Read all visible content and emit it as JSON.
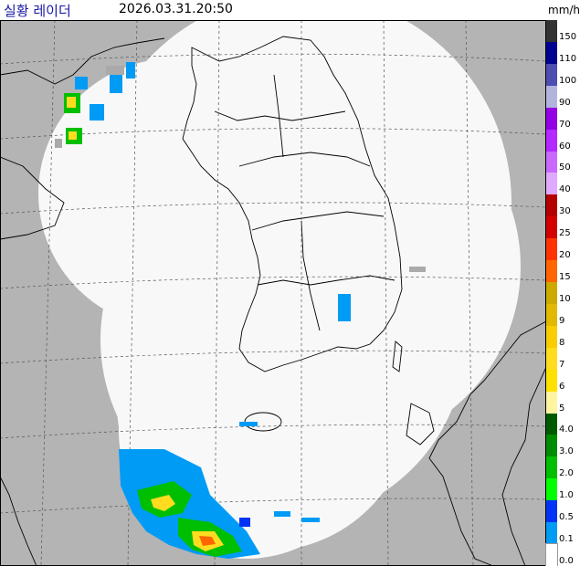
{
  "header": {
    "title": "실황 레이더",
    "timestamp": "2026.03.31.20:50",
    "unit": "mm/h"
  },
  "legend": {
    "items": [
      {
        "label": "150",
        "color": "#333333"
      },
      {
        "label": "110",
        "color": "#000390"
      },
      {
        "label": "100",
        "color": "#4c4eb1"
      },
      {
        "label": "90",
        "color": "#b3b4de"
      },
      {
        "label": "70",
        "color": "#9300e4"
      },
      {
        "label": "60",
        "color": "#b329ff"
      },
      {
        "label": "50",
        "color": "#c969ff"
      },
      {
        "label": "40",
        "color": "#e0a9ff"
      },
      {
        "label": "30",
        "color": "#b40000"
      },
      {
        "label": "25",
        "color": "#d20000"
      },
      {
        "label": "20",
        "color": "#ff3300"
      },
      {
        "label": "15",
        "color": "#ff6600"
      },
      {
        "label": "10",
        "color": "#ccaa00"
      },
      {
        "label": "9",
        "color": "#e0b900"
      },
      {
        "label": "8",
        "color": "#f9cd00"
      },
      {
        "label": "7",
        "color": "#ffdc1f"
      },
      {
        "label": "6",
        "color": "#ffe100"
      },
      {
        "label": "5",
        "color": "#fff4a0"
      },
      {
        "label": "4.0",
        "color": "#005a00"
      },
      {
        "label": "3.0",
        "color": "#008c00"
      },
      {
        "label": "2.0",
        "color": "#00be00"
      },
      {
        "label": "1.0",
        "color": "#00ff00"
      },
      {
        "label": "0.5",
        "color": "#0033f5"
      },
      {
        "label": "0.1",
        "color": "#009bf5"
      },
      {
        "label": "0.0",
        "color": "#ffffff"
      }
    ]
  },
  "colors": {
    "background_gray": "#b4b4b4",
    "coverage": "#f8f8f8",
    "coastline": "#000000",
    "grid": "#555555"
  }
}
